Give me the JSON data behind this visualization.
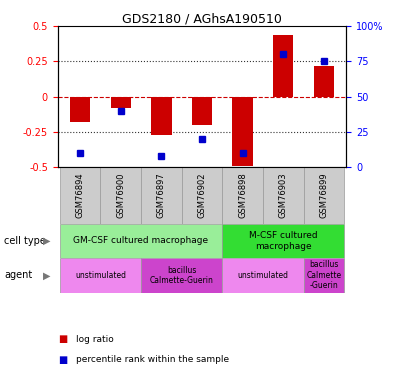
{
  "title": "GDS2180 / AGhsA190510",
  "samples": [
    "GSM76894",
    "GSM76900",
    "GSM76897",
    "GSM76902",
    "GSM76898",
    "GSM76903",
    "GSM76899"
  ],
  "log_ratios": [
    -0.18,
    -0.08,
    -0.27,
    -0.2,
    -0.49,
    0.44,
    0.22
  ],
  "percentile_ranks": [
    10,
    40,
    8,
    20,
    10,
    80,
    75
  ],
  "ylim_left": [
    -0.5,
    0.5
  ],
  "ylim_right": [
    0,
    100
  ],
  "yticks_left": [
    -0.5,
    -0.25,
    0,
    0.25,
    0.5
  ],
  "yticks_right": [
    0,
    25,
    50,
    75,
    100
  ],
  "bar_color": "#cc0000",
  "dot_color": "#0000cc",
  "xlabel_row_color": "#cccccc",
  "zero_line_color": "#cc0000",
  "dotted_line_color": "#333333",
  "cell_type_groups": [
    {
      "label": "GM-CSF cultured macrophage",
      "span": [
        0,
        4
      ],
      "color": "#99ee99"
    },
    {
      "label": "M-CSF cultured\nmacrophage",
      "span": [
        4,
        7
      ],
      "color": "#33dd33"
    }
  ],
  "agent_groups": [
    {
      "label": "unstimulated",
      "span": [
        0,
        2
      ],
      "color": "#ee88ee"
    },
    {
      "label": "bacillus\nCalmette-Guerin",
      "span": [
        2,
        4
      ],
      "color": "#cc44cc"
    },
    {
      "label": "unstimulated",
      "span": [
        4,
        6
      ],
      "color": "#ee88ee"
    },
    {
      "label": "bacillus\nCalmette\n-Guerin",
      "span": [
        6,
        7
      ],
      "color": "#cc44cc"
    }
  ],
  "legend_items": [
    {
      "color": "#cc0000",
      "label": "log ratio"
    },
    {
      "color": "#0000cc",
      "label": "percentile rank within the sample"
    }
  ],
  "row_labels": [
    "cell type",
    "agent"
  ],
  "fig_width": 3.98,
  "fig_height": 3.75,
  "dpi": 100
}
